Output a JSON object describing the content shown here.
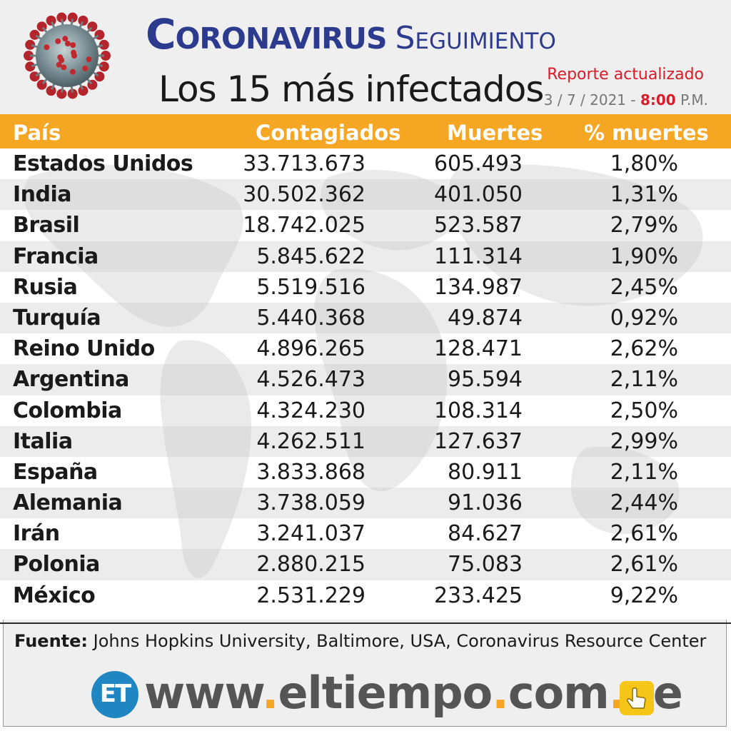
{
  "header": {
    "title_main": "Coronavirus",
    "title_secondary": "Seguimiento",
    "subtitle": "Los 15 más infectados",
    "report_label": "Reporte actualizado",
    "report_date": "3 / 7 / 2021 -",
    "report_time": "8:00",
    "report_ampm": "P.M."
  },
  "colors": {
    "header_bar": "#f5a623",
    "title_blue": "#2d3b8e",
    "accent_red": "#d81c2a",
    "logo_blue": "#1f86c2"
  },
  "icons": [
    "coronavirus-icon",
    "world-map-background",
    "et-logo-icon",
    "pointing-hand-icon"
  ],
  "chart_data": {
    "type": "table",
    "columns": [
      "País",
      "Contagiados",
      "Muertes",
      "% muertes"
    ],
    "rows": [
      [
        "Estados Unidos",
        "33.713.673",
        "605.493",
        "1,80%"
      ],
      [
        "India",
        "30.502.362",
        "401.050",
        "1,31%"
      ],
      [
        "Brasil",
        "18.742.025",
        "523.587",
        "2,79%"
      ],
      [
        "Francia",
        "5.845.622",
        "111.314",
        "1,90%"
      ],
      [
        "Rusia",
        "5.519.516",
        "134.987",
        "2,45%"
      ],
      [
        "Turquía",
        "5.440.368",
        "49.874",
        "0,92%"
      ],
      [
        "Reino Unido",
        "4.896.265",
        "128.471",
        "2,62%"
      ],
      [
        "Argentina",
        "4.526.473",
        "95.594",
        "2,11%"
      ],
      [
        "Colombia",
        "4.324.230",
        "108.314",
        "2,50%"
      ],
      [
        "Italia",
        "4.262.511",
        "127.637",
        "2,99%"
      ],
      [
        "España",
        "3.833.868",
        "80.911",
        "2,11%"
      ],
      [
        "Alemania",
        "3.738.059",
        "91.036",
        "2,44%"
      ],
      [
        "Irán",
        "3.241.037",
        "84.627",
        "2,61%"
      ],
      [
        "Polonia",
        "2.880.215",
        "75.083",
        "2,61%"
      ],
      [
        "México",
        "2.531.229",
        "233.425",
        "9,22%"
      ]
    ]
  },
  "footer": {
    "source_label": "Fuente:",
    "source_text": "Johns Hopkins University, Baltimore, USA, Coronavirus Resource Center",
    "logo_text": "ET",
    "url_part1": "www",
    "url_part2": "eltiempo",
    "url_part3": "com",
    "url_part4": "ve"
  }
}
